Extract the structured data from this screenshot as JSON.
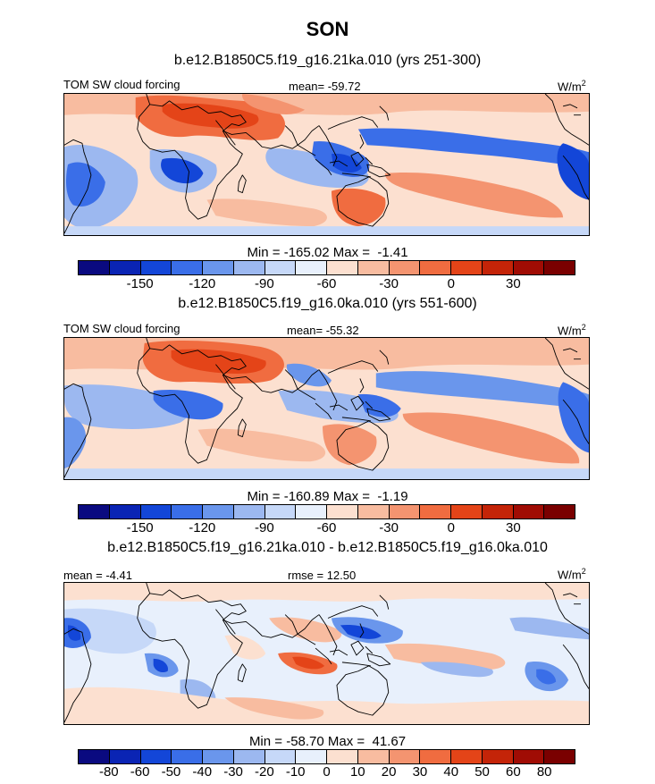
{
  "figure": {
    "title": "SON"
  },
  "panels": [
    {
      "title": "b.e12.B1850C5.f19_g16.21ka.010 (yrs 251-300)",
      "left_label": "TOM SW cloud forcing",
      "center_label": "mean= -59.72",
      "units": "W/m",
      "units_sup": "2",
      "minmax": "Min = -165.02 Max =  -1.41",
      "colorbar": {
        "colors": [
          "#0a0a80",
          "#0a24b4",
          "#1346d8",
          "#3a6ee8",
          "#6a96ec",
          "#9cb8f0",
          "#c6d8f8",
          "#e8f0fc",
          "#fce0d0",
          "#f8bca0",
          "#f49470",
          "#f06c40",
          "#e44418",
          "#c42408",
          "#a00c04",
          "#7a0000"
        ],
        "ticks": [
          {
            "label": "-150",
            "boundary": 2
          },
          {
            "label": "-120",
            "boundary": 4
          },
          {
            "label": "-90",
            "boundary": 6
          },
          {
            "label": "-60",
            "boundary": 8
          },
          {
            "label": "-30",
            "boundary": 10
          },
          {
            "label": "0",
            "boundary": 12
          },
          {
            "label": "30",
            "boundary": 14
          }
        ]
      }
    },
    {
      "title": "b.e12.B1850C5.f19_g16.0ka.010 (yrs 551-600)",
      "left_label": "TOM SW cloud forcing",
      "center_label": "mean= -55.32",
      "units": "W/m",
      "units_sup": "2",
      "minmax": "Min = -160.89 Max =  -1.19",
      "colorbar": {
        "colors": [
          "#0a0a80",
          "#0a24b4",
          "#1346d8",
          "#3a6ee8",
          "#6a96ec",
          "#9cb8f0",
          "#c6d8f8",
          "#e8f0fc",
          "#fce0d0",
          "#f8bca0",
          "#f49470",
          "#f06c40",
          "#e44418",
          "#c42408",
          "#a00c04",
          "#7a0000"
        ],
        "ticks": [
          {
            "label": "-150",
            "boundary": 2
          },
          {
            "label": "-120",
            "boundary": 4
          },
          {
            "label": "-90",
            "boundary": 6
          },
          {
            "label": "-60",
            "boundary": 8
          },
          {
            "label": "-30",
            "boundary": 10
          },
          {
            "label": "0",
            "boundary": 12
          },
          {
            "label": "30",
            "boundary": 14
          }
        ]
      }
    },
    {
      "title": "b.e12.B1850C5.f19_g16.21ka.010 - b.e12.B1850C5.f19_g16.0ka.010",
      "left_label": "mean =  -4.41",
      "center_label": "rmse =  12.50",
      "units": "W/m",
      "units_sup": "2",
      "minmax": "Min = -58.70 Max =  41.67",
      "colorbar": {
        "colors": [
          "#0a0a80",
          "#0a24b4",
          "#1346d8",
          "#3a6ee8",
          "#6a96ec",
          "#9cb8f0",
          "#c6d8f8",
          "#e8f0fc",
          "#fce0d0",
          "#f8bca0",
          "#f49470",
          "#f06c40",
          "#e44418",
          "#c42408",
          "#a00c04",
          "#7a0000"
        ],
        "ticks": [
          {
            "label": "-80",
            "boundary": 1
          },
          {
            "label": "-60",
            "boundary": 2
          },
          {
            "label": "-50",
            "boundary": 3
          },
          {
            "label": "-40",
            "boundary": 4
          },
          {
            "label": "-30",
            "boundary": 5
          },
          {
            "label": "-20",
            "boundary": 6
          },
          {
            "label": "-10",
            "boundary": 7
          },
          {
            "label": "0",
            "boundary": 8
          },
          {
            "label": "10",
            "boundary": 9
          },
          {
            "label": "20",
            "boundary": 10
          },
          {
            "label": "30",
            "boundary": 11
          },
          {
            "label": "40",
            "boundary": 12
          },
          {
            "label": "50",
            "boundary": 13
          },
          {
            "label": "60",
            "boundary": 14
          },
          {
            "label": "80",
            "boundary": 15
          }
        ]
      }
    }
  ]
}
